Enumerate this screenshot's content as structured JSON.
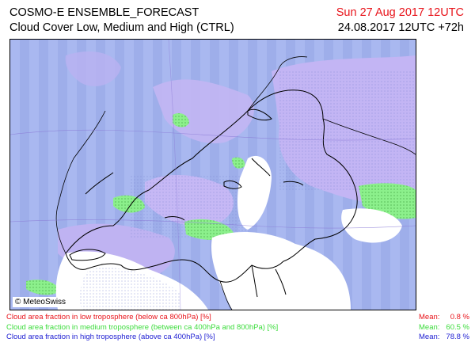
{
  "header": {
    "title_line1": "COSMO-E ENSEMBLE_FORECAST",
    "title_line2": "Cloud Cover Low, Medium and High (CTRL)",
    "valid_time": "Sun 27 Aug 2017 12UTC",
    "run_time": "24.08.2017 12UTC +72h"
  },
  "map": {
    "credit": "© MeteoSwiss",
    "colors": {
      "high": "#a3b3ee",
      "medium": "#66ee66",
      "mid_high": "#c4b4f4",
      "clear": "#ffffff",
      "border": "#000000"
    }
  },
  "legend": [
    {
      "label": "Cloud area fraction in low troposphere (below ca 800hPa) [%]",
      "mean_label": "Mean:",
      "mean_value": "0.8 %",
      "color": "#e8141b"
    },
    {
      "label": "Cloud area fraction in medium troposphere (between ca 400hPa and 800hPa) [%]",
      "mean_label": "Mean:",
      "mean_value": "60.5 %",
      "color": "#3cdc3c"
    },
    {
      "label": "Cloud area fraction in high troposphere (above ca 400hPa) [%]",
      "mean_label": "Mean:",
      "mean_value": "78.8 %",
      "color": "#1e1ed2"
    }
  ]
}
